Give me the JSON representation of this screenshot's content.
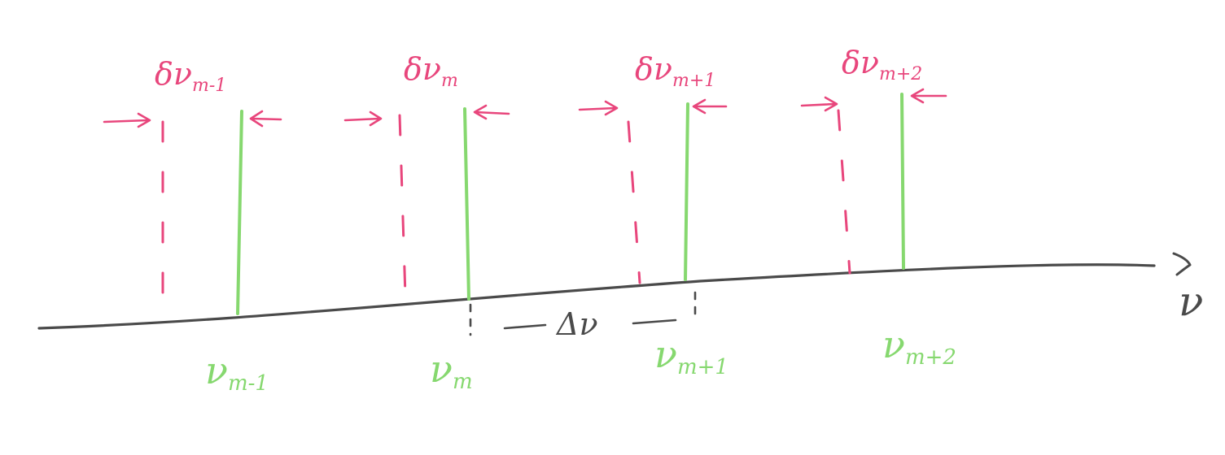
{
  "colors": {
    "frequency_line": "#86d86f",
    "width_marker": "#e8467c",
    "axis": "#4a4a4a"
  },
  "lines": [
    {
      "width_label": "δν",
      "width_index": "m-1",
      "freq_label": "ν",
      "freq_index": "m-1"
    },
    {
      "width_label": "δν",
      "width_index": "m",
      "freq_label": "ν",
      "freq_index": "m"
    },
    {
      "width_label": "δν",
      "width_index": "m+1",
      "freq_label": "ν",
      "freq_index": "m+1"
    },
    {
      "width_label": "δν",
      "width_index": "m+2",
      "freq_label": "ν",
      "freq_index": "m+2"
    }
  ],
  "spacing_label": "Δν",
  "axis_label": "ν"
}
